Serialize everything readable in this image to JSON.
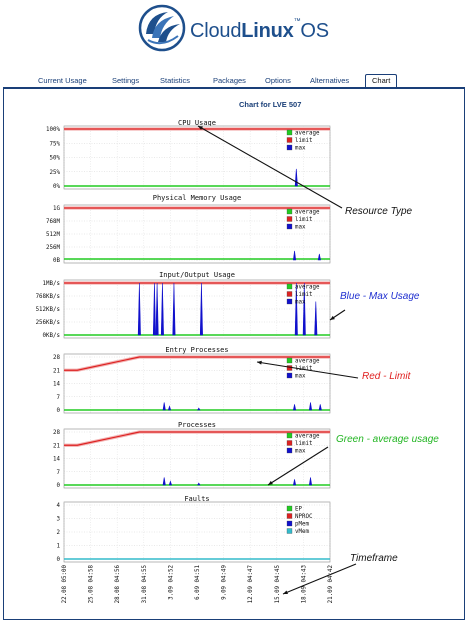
{
  "brand": {
    "name_light": "Cloud",
    "name_bold": "Linux",
    "suffix": "OS",
    "tm": "™"
  },
  "tabs": [
    {
      "label": "Current Usage"
    },
    {
      "label": "Settings"
    },
    {
      "label": "Statistics"
    },
    {
      "label": "Packages"
    },
    {
      "label": "Options"
    },
    {
      "label": "Alternatives"
    },
    {
      "label": "Chart",
      "active": true
    }
  ],
  "page_title": "Chart for LVE 507",
  "x_tick_labels": [
    "22.08 05:00",
    "25.08 04:58",
    "28.08 04:56",
    "31.08 04:55",
    "3.09 04:52",
    "6.09 04:51",
    "9.09 04:49",
    "12.09 04:47",
    "15.09 04:45",
    "18.09 04:43",
    "21.09 04:42"
  ],
  "colors": {
    "average": "#22cc22",
    "limit": "#dd2222",
    "max": "#1111cc",
    "ep": "#22cc22",
    "nproc": "#dd2222",
    "pmem": "#1111cc",
    "vmem": "#33bbcc",
    "brand": "#1e4f8c",
    "nav": "#1a3f78"
  },
  "annotations": {
    "resource_type": "Resource Type",
    "max_usage": "Blue - Max Usage",
    "limit": "Red - Limit",
    "average": "Green - average usage",
    "timeframe": "Timeframe"
  },
  "chart_data": [
    {
      "type": "line",
      "title": "CPU Usage",
      "ytick_labels": [
        "100%",
        "75%",
        "50%",
        "25%",
        "0%"
      ],
      "ylim": [
        0,
        100
      ],
      "legend": [
        "average",
        "limit",
        "max"
      ],
      "series": [
        {
          "name": "limit",
          "values": [
            [
              0,
              100
            ],
            [
              30,
              100
            ]
          ]
        },
        {
          "name": "average",
          "values": [
            [
              0,
              0
            ],
            [
              30,
              0
            ]
          ]
        },
        {
          "name": "max",
          "spikes": [
            [
              26.2,
              30
            ]
          ]
        }
      ]
    },
    {
      "type": "line",
      "title": "Physical Memory Usage",
      "ytick_labels": [
        "1G",
        "768M",
        "512M",
        "256M",
        "0B"
      ],
      "ylim": [
        0,
        1024
      ],
      "legend": [
        "average",
        "limit",
        "max"
      ],
      "series": [
        {
          "name": "limit",
          "values": [
            [
              0,
              1024
            ],
            [
              30,
              1024
            ]
          ]
        },
        {
          "name": "average",
          "values": [
            [
              0,
              20
            ],
            [
              30,
              20
            ]
          ]
        },
        {
          "name": "max",
          "spikes": [
            [
              26,
              180
            ],
            [
              28.8,
              120
            ]
          ]
        }
      ]
    },
    {
      "type": "line",
      "title": "Input/Output Usage",
      "ytick_labels": [
        "1MB/s",
        "768KB/s",
        "512KB/s",
        "256KB/s",
        "0KB/s"
      ],
      "ylim": [
        0,
        1024
      ],
      "legend": [
        "average",
        "limit",
        "max"
      ],
      "series": [
        {
          "name": "limit",
          "values": [
            [
              0,
              1024
            ],
            [
              30,
              1024
            ]
          ]
        },
        {
          "name": "average",
          "values": [
            [
              0,
              0
            ],
            [
              30,
              0
            ]
          ]
        },
        {
          "name": "max",
          "spikes": [
            [
              8.5,
              1024
            ],
            [
              10.2,
              1024
            ],
            [
              10.5,
              1024
            ],
            [
              11.1,
              1024
            ],
            [
              12.4,
              1024
            ],
            [
              15.5,
              1024
            ],
            [
              26.2,
              1024
            ],
            [
              27.1,
              1024
            ],
            [
              28.4,
              660
            ]
          ]
        }
      ]
    },
    {
      "type": "line",
      "title": "Entry Processes",
      "ytick_labels": [
        "28",
        "21",
        "14",
        "7",
        "0"
      ],
      "ylim": [
        0,
        28
      ],
      "legend": [
        "average",
        "limit",
        "max"
      ],
      "series": [
        {
          "name": "limit",
          "values": [
            [
              0,
              21
            ],
            [
              1.5,
              21
            ],
            [
              8.5,
              28
            ],
            [
              30,
              28
            ]
          ]
        },
        {
          "name": "average",
          "values": [
            [
              0,
              0
            ],
            [
              30,
              0
            ]
          ]
        },
        {
          "name": "max",
          "spikes": [
            [
              11.3,
              4
            ],
            [
              11.9,
              2
            ],
            [
              15.2,
              1
            ],
            [
              26,
              3
            ],
            [
              27.8,
              4
            ],
            [
              28.9,
              3
            ]
          ]
        }
      ]
    },
    {
      "type": "line",
      "title": "Processes",
      "ytick_labels": [
        "28",
        "21",
        "14",
        "7",
        "0"
      ],
      "ylim": [
        0,
        28
      ],
      "legend": [
        "average",
        "limit",
        "max"
      ],
      "series": [
        {
          "name": "limit",
          "values": [
            [
              0,
              21
            ],
            [
              1.5,
              21
            ],
            [
              8.5,
              28
            ],
            [
              30,
              28
            ]
          ]
        },
        {
          "name": "average",
          "values": [
            [
              0,
              0
            ],
            [
              30,
              0
            ]
          ]
        },
        {
          "name": "max",
          "spikes": [
            [
              11.3,
              4
            ],
            [
              12,
              2
            ],
            [
              15.2,
              1
            ],
            [
              26,
              3
            ],
            [
              27.8,
              4
            ]
          ]
        }
      ]
    },
    {
      "type": "line",
      "title": "Faults",
      "ytick_labels": [
        "4",
        "3",
        "2",
        "1",
        "0"
      ],
      "ylim": [
        0,
        4
      ],
      "legend": [
        "EP",
        "NPROC",
        "pMem",
        "vMem"
      ],
      "series": [
        {
          "name": "vMem",
          "values": [
            [
              0,
              0
            ],
            [
              30,
              0
            ]
          ]
        }
      ]
    }
  ]
}
